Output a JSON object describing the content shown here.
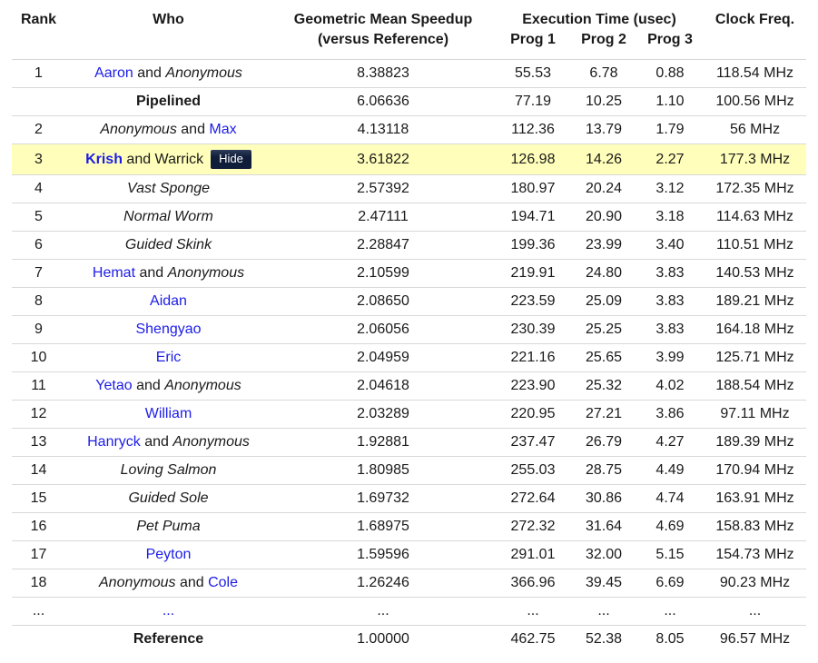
{
  "table": {
    "headers": {
      "rank": "Rank",
      "who": "Who",
      "speedup_line1": "Geometric Mean Speedup",
      "speedup_line2": "(versus Reference)",
      "exec_time": "Execution Time (usec)",
      "prog1": "Prog 1",
      "prog2": "Prog 2",
      "prog3": "Prog 3",
      "clock": "Clock Freq."
    },
    "hide_button_label": "Hide",
    "colors": {
      "link_blue": "#1d1de8",
      "highlight_yellow": "#ffffbb",
      "row_border": "#d8d8d8",
      "hide_button_top": "#2e3d5c",
      "hide_button_bottom": "#101d3a",
      "hide_button_text": "#ffffff"
    },
    "rows": [
      {
        "rank": "1",
        "who": [
          {
            "text": "Aaron",
            "style": "link"
          },
          {
            "text": " and ",
            "style": "plain"
          },
          {
            "text": "Anonymous",
            "style": "italic"
          }
        ],
        "speedup": "8.38823",
        "prog1": "55.53",
        "prog2": "6.78",
        "prog3": "0.88",
        "clock": "118.54 MHz",
        "highlight": false,
        "hide_button": false
      },
      {
        "rank": "",
        "who": [
          {
            "text": "Pipelined",
            "style": "bold"
          }
        ],
        "speedup": "6.06636",
        "prog1": "77.19",
        "prog2": "10.25",
        "prog3": "1.10",
        "clock": "100.56 MHz",
        "highlight": false,
        "hide_button": false
      },
      {
        "rank": "2",
        "who": [
          {
            "text": "Anonymous",
            "style": "italic"
          },
          {
            "text": " and ",
            "style": "plain"
          },
          {
            "text": "Max",
            "style": "link"
          }
        ],
        "speedup": "4.13118",
        "prog1": "112.36",
        "prog2": "13.79",
        "prog3": "1.79",
        "clock": "56 MHz",
        "highlight": false,
        "hide_button": false
      },
      {
        "rank": "3",
        "who": [
          {
            "text": "Krish",
            "style": "boldlink"
          },
          {
            "text": " and Warrick",
            "style": "plain"
          }
        ],
        "speedup": "3.61822",
        "prog1": "126.98",
        "prog2": "14.26",
        "prog3": "2.27",
        "clock": "177.3 MHz",
        "highlight": true,
        "hide_button": true
      },
      {
        "rank": "4",
        "who": [
          {
            "text": "Vast Sponge",
            "style": "italic"
          }
        ],
        "speedup": "2.57392",
        "prog1": "180.97",
        "prog2": "20.24",
        "prog3": "3.12",
        "clock": "172.35 MHz",
        "highlight": false,
        "hide_button": false
      },
      {
        "rank": "5",
        "who": [
          {
            "text": "Normal Worm",
            "style": "italic"
          }
        ],
        "speedup": "2.47111",
        "prog1": "194.71",
        "prog2": "20.90",
        "prog3": "3.18",
        "clock": "114.63 MHz",
        "highlight": false,
        "hide_button": false
      },
      {
        "rank": "6",
        "who": [
          {
            "text": "Guided Skink",
            "style": "italic"
          }
        ],
        "speedup": "2.28847",
        "prog1": "199.36",
        "prog2": "23.99",
        "prog3": "3.40",
        "clock": "110.51 MHz",
        "highlight": false,
        "hide_button": false
      },
      {
        "rank": "7",
        "who": [
          {
            "text": "Hemat",
            "style": "link"
          },
          {
            "text": " and ",
            "style": "plain"
          },
          {
            "text": "Anonymous",
            "style": "italic"
          }
        ],
        "speedup": "2.10599",
        "prog1": "219.91",
        "prog2": "24.80",
        "prog3": "3.83",
        "clock": "140.53 MHz",
        "highlight": false,
        "hide_button": false
      },
      {
        "rank": "8",
        "who": [
          {
            "text": "Aidan",
            "style": "link"
          }
        ],
        "speedup": "2.08650",
        "prog1": "223.59",
        "prog2": "25.09",
        "prog3": "3.83",
        "clock": "189.21 MHz",
        "highlight": false,
        "hide_button": false
      },
      {
        "rank": "9",
        "who": [
          {
            "text": "Shengyao",
            "style": "link"
          }
        ],
        "speedup": "2.06056",
        "prog1": "230.39",
        "prog2": "25.25",
        "prog3": "3.83",
        "clock": "164.18 MHz",
        "highlight": false,
        "hide_button": false
      },
      {
        "rank": "10",
        "who": [
          {
            "text": "Eric",
            "style": "link"
          }
        ],
        "speedup": "2.04959",
        "prog1": "221.16",
        "prog2": "25.65",
        "prog3": "3.99",
        "clock": "125.71 MHz",
        "highlight": false,
        "hide_button": false
      },
      {
        "rank": "11",
        "who": [
          {
            "text": "Yetao",
            "style": "link"
          },
          {
            "text": " and ",
            "style": "plain"
          },
          {
            "text": "Anonymous",
            "style": "italic"
          }
        ],
        "speedup": "2.04618",
        "prog1": "223.90",
        "prog2": "25.32",
        "prog3": "4.02",
        "clock": "188.54 MHz",
        "highlight": false,
        "hide_button": false
      },
      {
        "rank": "12",
        "who": [
          {
            "text": "William",
            "style": "link"
          }
        ],
        "speedup": "2.03289",
        "prog1": "220.95",
        "prog2": "27.21",
        "prog3": "3.86",
        "clock": "97.11 MHz",
        "highlight": false,
        "hide_button": false
      },
      {
        "rank": "13",
        "who": [
          {
            "text": "Hanryck",
            "style": "link"
          },
          {
            "text": " and ",
            "style": "plain"
          },
          {
            "text": "Anonymous",
            "style": "italic"
          }
        ],
        "speedup": "1.92881",
        "prog1": "237.47",
        "prog2": "26.79",
        "prog3": "4.27",
        "clock": "189.39 MHz",
        "highlight": false,
        "hide_button": false
      },
      {
        "rank": "14",
        "who": [
          {
            "text": "Loving Salmon",
            "style": "italic"
          }
        ],
        "speedup": "1.80985",
        "prog1": "255.03",
        "prog2": "28.75",
        "prog3": "4.49",
        "clock": "170.94 MHz",
        "highlight": false,
        "hide_button": false
      },
      {
        "rank": "15",
        "who": [
          {
            "text": "Guided Sole",
            "style": "italic"
          }
        ],
        "speedup": "1.69732",
        "prog1": "272.64",
        "prog2": "30.86",
        "prog3": "4.74",
        "clock": "163.91 MHz",
        "highlight": false,
        "hide_button": false
      },
      {
        "rank": "16",
        "who": [
          {
            "text": "Pet Puma",
            "style": "italic"
          }
        ],
        "speedup": "1.68975",
        "prog1": "272.32",
        "prog2": "31.64",
        "prog3": "4.69",
        "clock": "158.83 MHz",
        "highlight": false,
        "hide_button": false
      },
      {
        "rank": "17",
        "who": [
          {
            "text": "Peyton",
            "style": "link"
          }
        ],
        "speedup": "1.59596",
        "prog1": "291.01",
        "prog2": "32.00",
        "prog3": "5.15",
        "clock": "154.73 MHz",
        "highlight": false,
        "hide_button": false
      },
      {
        "rank": "18",
        "who": [
          {
            "text": "Anonymous",
            "style": "italic"
          },
          {
            "text": " and ",
            "style": "plain"
          },
          {
            "text": "Cole",
            "style": "link"
          }
        ],
        "speedup": "1.26246",
        "prog1": "366.96",
        "prog2": "39.45",
        "prog3": "6.69",
        "clock": "90.23 MHz",
        "highlight": false,
        "hide_button": false
      },
      {
        "rank": "...",
        "who": [
          {
            "text": "...",
            "style": "link"
          }
        ],
        "speedup": "...",
        "prog1": "...",
        "prog2": "...",
        "prog3": "...",
        "clock": "...",
        "highlight": false,
        "hide_button": false
      },
      {
        "rank": "",
        "who": [
          {
            "text": "Reference",
            "style": "bold"
          }
        ],
        "speedup": "1.00000",
        "prog1": "462.75",
        "prog2": "52.38",
        "prog3": "8.05",
        "clock": "96.57 MHz",
        "highlight": false,
        "hide_button": false
      }
    ]
  }
}
